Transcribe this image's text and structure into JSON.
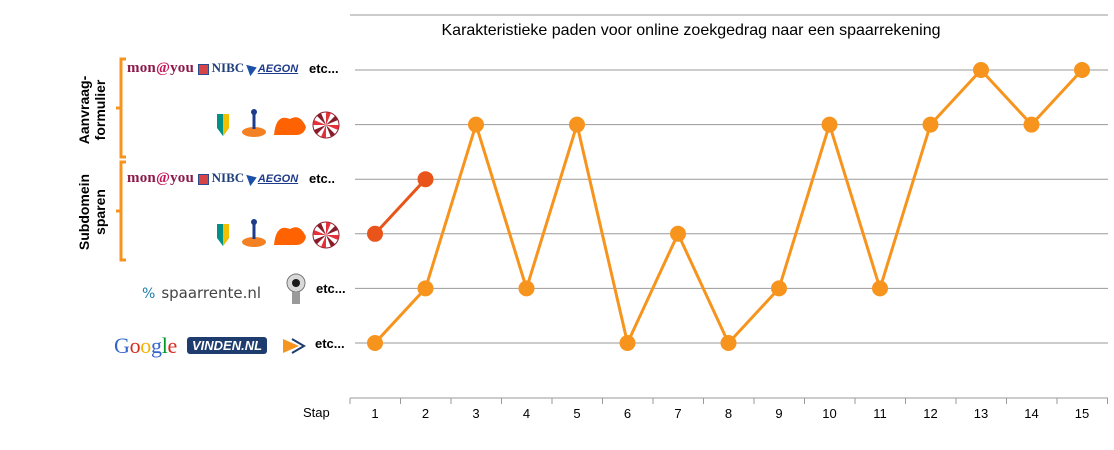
{
  "chart_data": {
    "type": "line",
    "title": "Karakteristieke paden voor online zoekgedrag naar een spaarrekening",
    "xlabel": "Stap",
    "x": [
      1,
      2,
      3,
      4,
      5,
      6,
      7,
      8,
      9,
      10,
      11,
      12,
      13,
      14,
      15
    ],
    "y_categories": [
      "Google / Vinden.nl etc...",
      "Spaarrente.nl etc...",
      "Subdomein sparen: ABN AMRO / Rabobank / ING / Fortis",
      "Subdomein sparen: MoneYou / NIBC / AEGON etc..",
      "Aanvraagformulier: ABN AMRO / Rabobank / ING / Fortis",
      "Aanvraagformulier: MoneYou / NIBC / AEGON etc..."
    ],
    "series": [
      {
        "color": "#f7941d",
        "x": [
          1,
          2,
          3,
          4,
          5,
          6,
          7,
          8,
          9,
          10,
          11,
          12,
          13,
          14,
          15
        ],
        "y": [
          1,
          2,
          5,
          2,
          5,
          1,
          3,
          1,
          2,
          5,
          2,
          5,
          6,
          5,
          6
        ]
      },
      {
        "color": "#e8541a",
        "x": [
          1,
          2
        ],
        "y": [
          3,
          4
        ]
      }
    ],
    "grid": true
  },
  "labels": {
    "group_top": "Aanvraag-\nformulier",
    "group_top_l1": "Aanvraag-",
    "group_top_l2": "formulier",
    "group_mid_l1": "Subdomein",
    "group_mid_l2": "sparen",
    "etc_row6": "etc...",
    "etc_row4": "etc..",
    "etc_row2": "etc...",
    "etc_row1": "etc..."
  },
  "brands": {
    "moneyou_a": "mon",
    "moneyou_b": "@",
    "moneyou_c": "you",
    "nibc": "NIBC",
    "aegon": "AEGON",
    "spaarrente_pct": "%",
    "spaarrente": "spaarrente.nl",
    "google": "Google",
    "vinden": "VINDEN.NL"
  },
  "colors": {
    "bracket": "#f7941d",
    "grid": "#9a9a9a",
    "google_blue": "#3366cc",
    "google_red": "#d62d20",
    "google_yellow": "#f3b400",
    "google_green": "#009925"
  }
}
